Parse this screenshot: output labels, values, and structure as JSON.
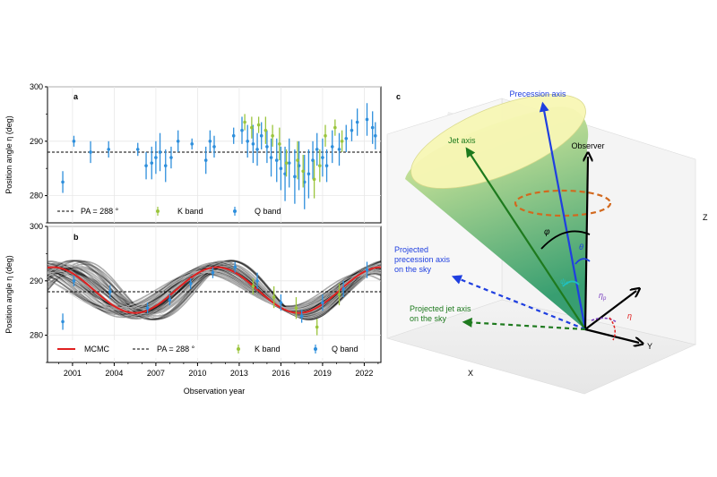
{
  "figure": {
    "panel_a_label": "a",
    "panel_b_label": "b",
    "panel_c_label": "c"
  },
  "chart_data": [
    {
      "type": "scatter",
      "panel": "a",
      "ylabel": "Position angle η (deg)",
      "xlabel": "",
      "ylim": [
        275,
        300
      ],
      "yticks": [
        "280",
        "290",
        "300"
      ],
      "xlim": [
        1999.2,
        2023.2
      ],
      "reference_line": {
        "label": "PA = 288 °",
        "value": 288
      },
      "legend_placement": "bottom",
      "legend": [
        "PA = 288 °",
        "K band",
        "Q band"
      ],
      "series": [
        {
          "name": "Q band",
          "color": "#2e8fdc",
          "points": [
            [
              2000.3,
              282.5,
              2.0
            ],
            [
              2001.1,
              290.0,
              1.0
            ],
            [
              2002.3,
              288.0,
              2.0
            ],
            [
              2003.6,
              288.5,
              1.5
            ],
            [
              2005.7,
              288.5,
              1.2
            ],
            [
              2006.3,
              285.5,
              2.5
            ],
            [
              2006.7,
              286.0,
              3.0
            ],
            [
              2007.0,
              287.0,
              3.0
            ],
            [
              2007.3,
              288.0,
              3.5
            ],
            [
              2007.7,
              285.5,
              3.0
            ],
            [
              2008.1,
              287.0,
              2.0
            ],
            [
              2008.6,
              290.0,
              2.0
            ],
            [
              2009.6,
              289.5,
              1.0
            ],
            [
              2010.6,
              286.5,
              2.5
            ],
            [
              2010.9,
              290.0,
              2.0
            ],
            [
              2011.2,
              289.0,
              2.0
            ],
            [
              2012.6,
              291.0,
              1.5
            ],
            [
              2013.2,
              292.0,
              2.5
            ],
            [
              2013.6,
              290.0,
              3.0
            ],
            [
              2014.0,
              289.5,
              3.5
            ],
            [
              2014.3,
              288.5,
              3.0
            ],
            [
              2014.6,
              291.0,
              2.5
            ],
            [
              2015.0,
              289.0,
              3.0
            ],
            [
              2015.3,
              287.0,
              3.5
            ],
            [
              2015.7,
              286.5,
              4.0
            ],
            [
              2016.0,
              285.0,
              4.0
            ],
            [
              2016.3,
              284.0,
              5.0
            ],
            [
              2016.6,
              286.0,
              4.5
            ],
            [
              2017.0,
              283.5,
              5.0
            ],
            [
              2017.3,
              285.5,
              4.5
            ],
            [
              2017.7,
              282.5,
              5.0
            ],
            [
              2018.0,
              284.0,
              4.5
            ],
            [
              2018.3,
              286.5,
              3.5
            ],
            [
              2018.6,
              288.5,
              3.0
            ],
            [
              2019.0,
              287.0,
              3.5
            ],
            [
              2019.3,
              285.5,
              3.0
            ],
            [
              2019.7,
              289.0,
              3.0
            ],
            [
              2020.2,
              288.5,
              3.0
            ],
            [
              2020.7,
              290.5,
              2.5
            ],
            [
              2021.1,
              292.0,
              2.0
            ],
            [
              2021.5,
              293.5,
              2.5
            ],
            [
              2022.2,
              294.0,
              3.0
            ],
            [
              2022.6,
              292.5,
              3.0
            ],
            [
              2022.8,
              291.0,
              2.5
            ]
          ]
        },
        {
          "name": "K band",
          "color": "#9bc53d",
          "points": [
            [
              2013.4,
              293.5,
              1.5
            ],
            [
              2013.9,
              292.5,
              2.0
            ],
            [
              2014.4,
              293.0,
              1.5
            ],
            [
              2014.9,
              292.0,
              2.5
            ],
            [
              2015.4,
              291.0,
              2.0
            ],
            [
              2015.9,
              289.5,
              3.0
            ],
            [
              2016.4,
              286.0,
              2.5
            ],
            [
              2017.2,
              286.5,
              3.5
            ],
            [
              2017.6,
              284.5,
              3.0
            ],
            [
              2018.4,
              283.0,
              3.5
            ],
            [
              2018.8,
              285.5,
              3.0
            ],
            [
              2019.2,
              291.0,
              2.0
            ],
            [
              2019.9,
              292.5,
              1.5
            ],
            [
              2020.4,
              290.0,
              2.0
            ]
          ]
        }
      ]
    },
    {
      "type": "line",
      "panel": "b",
      "ylabel": "Position angle η (deg)",
      "xlabel": "Observation year",
      "ylim": [
        275,
        300
      ],
      "yticks": [
        "280",
        "290",
        "300"
      ],
      "xlim": [
        1999.2,
        2023.2
      ],
      "xticks": [
        "2001",
        "2004",
        "2007",
        "2010",
        "2013",
        "2016",
        "2019",
        "2022"
      ],
      "reference_line": {
        "label": "PA = 288 °",
        "value": 288
      },
      "legend_placement": "bottom",
      "legend": [
        "MCMC",
        "PA = 288 °",
        "K band",
        "Q band"
      ],
      "model": {
        "name": "MCMC",
        "color": "#e02020",
        "mean": 288.3,
        "amplitude": 4.2,
        "period_years": 11.8,
        "peak_year": 2011.4
      },
      "series": [
        {
          "name": "Q band",
          "color": "#2e8fdc",
          "points": [
            [
              2000.3,
              282.5,
              1.5
            ],
            [
              2001.1,
              290.0,
              1.0
            ],
            [
              2003.7,
              288.0,
              1.2
            ],
            [
              2006.4,
              285.0,
              1.0
            ],
            [
              2008.0,
              286.5,
              1.0
            ],
            [
              2009.5,
              289.5,
              1.0
            ],
            [
              2011.1,
              291.5,
              1.0
            ],
            [
              2012.7,
              292.5,
              1.0
            ],
            [
              2014.3,
              290.0,
              1.5
            ],
            [
              2016.0,
              286.0,
              1.5
            ],
            [
              2017.5,
              283.5,
              1.2
            ],
            [
              2019.0,
              286.0,
              1.5
            ],
            [
              2020.5,
              288.5,
              1.5
            ],
            [
              2022.2,
              292.0,
              1.5
            ]
          ]
        },
        {
          "name": "K band",
          "color": "#9bc53d",
          "points": [
            [
              2014.0,
              289.0,
              1.5
            ],
            [
              2015.5,
              287.0,
              2.0
            ],
            [
              2017.1,
              285.0,
              2.0
            ],
            [
              2018.6,
              281.5,
              1.5
            ],
            [
              2020.2,
              287.5,
              2.0
            ]
          ]
        }
      ]
    }
  ],
  "diagram": {
    "labels": {
      "precession_axis": "Precession axis",
      "jet_axis": "Jet axis",
      "observer": "Observer",
      "projected_precession": [
        "Projected",
        "precession axis",
        "on the sky"
      ],
      "projected_jet": [
        "Projected jet axis",
        "on the sky"
      ],
      "axis_x": "X",
      "axis_y": "Y",
      "axis_z": "Z",
      "phi": "φ",
      "theta": "θ",
      "psi_0": "ψ₀",
      "eta_p": "η",
      "eta_p_sub": "p",
      "eta": "η"
    },
    "colors": {
      "precession": "#1f3fe0",
      "jet": "#1e7a1e",
      "ring": "#d2691e",
      "cone_top": "#f6f7a0",
      "cone_bottom": "#2e9a6a"
    }
  }
}
